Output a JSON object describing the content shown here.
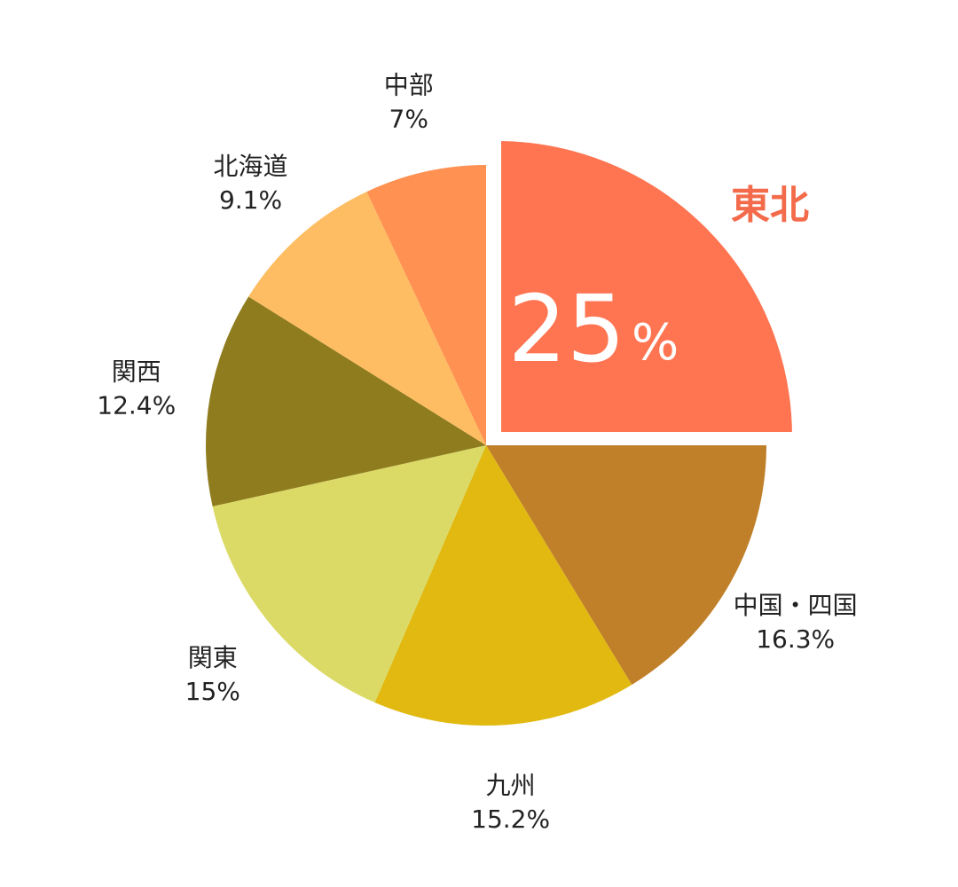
{
  "chart_data": {
    "type": "pie",
    "title": "",
    "unit": "%",
    "slices": [
      {
        "label": "東北",
        "value": 25,
        "value_text": "25",
        "color": "#FF7552",
        "highlighted": true
      },
      {
        "label": "中国・四国",
        "value": 16.3,
        "value_text": "16.3%",
        "color": "#C0802A"
      },
      {
        "label": "九州",
        "value": 15.2,
        "value_text": "15.2%",
        "color": "#E1B910"
      },
      {
        "label": "関東",
        "value": 15,
        "value_text": "15%",
        "color": "#DBDA66"
      },
      {
        "label": "関西",
        "value": 12.4,
        "value_text": "12.4%",
        "color": "#8F7C1F"
      },
      {
        "label": "北海道",
        "value": 9.1,
        "value_text": "9.1%",
        "color": "#FEBD62"
      },
      {
        "label": "中部",
        "value": 7,
        "value_text": "7%",
        "color": "#FF9152"
      }
    ],
    "highlight_label_color": "#F36B4A"
  }
}
